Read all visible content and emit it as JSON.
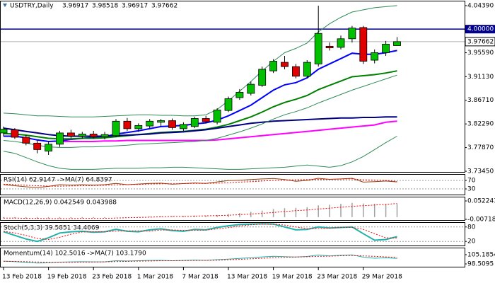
{
  "chart_data": [
    {
      "type": "candlestick",
      "title": "USDTRY,Daily",
      "categories": [
        "13 Feb 2018",
        null,
        null,
        null,
        "19 Feb 2018",
        null,
        null,
        null,
        "23 Feb 2018",
        null,
        null,
        null,
        "1 Mar 2018",
        null,
        null,
        null,
        "7 Mar 2018",
        null,
        null,
        null,
        "13 Mar 2018",
        null,
        null,
        null,
        "19 Mar 2018",
        null,
        null,
        null,
        "23 Mar 2018",
        null,
        null,
        null,
        "29 Mar 2018",
        null,
        null,
        null
      ],
      "open": [
        3.806,
        3.812,
        3.798,
        3.787,
        3.772,
        3.785,
        3.806,
        3.8,
        3.804,
        3.799,
        3.801,
        3.828,
        3.814,
        3.819,
        3.826,
        3.829,
        3.814,
        3.818,
        3.833,
        3.826,
        3.848,
        3.872,
        3.88,
        3.895,
        3.922,
        3.938,
        3.93,
        3.912,
        3.935,
        3.968,
        3.966,
        3.982,
        4.003,
        3.942,
        3.956,
        3.96917
      ],
      "high": [
        3.818,
        3.815,
        3.802,
        3.792,
        3.79,
        3.81,
        3.812,
        3.808,
        3.81,
        3.808,
        3.832,
        3.834,
        3.824,
        3.832,
        3.832,
        3.833,
        3.826,
        3.836,
        3.838,
        3.852,
        3.874,
        3.888,
        3.902,
        3.93,
        3.944,
        3.95,
        3.935,
        3.942,
        4.0439,
        3.975,
        3.988,
        4.006,
        4.006,
        3.962,
        3.978,
        3.98518
      ],
      "low": [
        3.8,
        3.795,
        3.783,
        3.768,
        3.765,
        3.78,
        3.796,
        3.795,
        3.796,
        3.794,
        3.798,
        3.81,
        3.808,
        3.815,
        3.818,
        3.812,
        3.81,
        3.815,
        3.824,
        3.822,
        3.845,
        3.868,
        3.876,
        3.892,
        3.918,
        3.925,
        3.908,
        3.908,
        3.93,
        3.96,
        3.962,
        3.975,
        3.935,
        3.936,
        3.95,
        3.96917
      ],
      "close": [
        3.813,
        3.798,
        3.787,
        3.775,
        3.785,
        3.806,
        3.8,
        3.804,
        3.799,
        3.803,
        3.828,
        3.814,
        3.82,
        3.828,
        3.829,
        3.816,
        3.822,
        3.833,
        3.827,
        3.849,
        3.87,
        3.882,
        3.897,
        3.925,
        3.94,
        3.93,
        3.912,
        3.938,
        3.992,
        3.965,
        3.982,
        4.002,
        3.94,
        3.956,
        3.972,
        3.97662
      ],
      "up_color": "#00c000",
      "down_color": "#e00000",
      "series": [
        {
          "color": "#0000ff",
          "width": 2,
          "values": [
            3.8,
            3.8,
            3.797,
            3.793,
            3.79,
            3.791,
            3.794,
            3.796,
            3.798,
            3.799,
            3.804,
            3.807,
            3.81,
            3.814,
            3.818,
            3.819,
            3.82,
            3.823,
            3.825,
            3.83,
            3.838,
            3.848,
            3.858,
            3.872,
            3.886,
            3.896,
            3.9,
            3.909,
            3.925,
            3.935,
            3.945,
            3.955,
            3.953,
            3.953,
            3.956,
            3.96
          ]
        },
        {
          "color": "#008000",
          "width": 2,
          "values": [
            3.805,
            3.804,
            3.802,
            3.799,
            3.796,
            3.795,
            3.795,
            3.796,
            3.796,
            3.797,
            3.799,
            3.801,
            3.803,
            3.805,
            3.807,
            3.808,
            3.809,
            3.811,
            3.813,
            3.817,
            3.822,
            3.829,
            3.836,
            3.845,
            3.855,
            3.863,
            3.869,
            3.876,
            3.887,
            3.895,
            3.903,
            3.911,
            3.913,
            3.915,
            3.918,
            3.922
          ]
        },
        {
          "color": "#000080",
          "width": 2,
          "values": [
            3.815,
            3.812,
            3.809,
            3.806,
            3.803,
            3.801,
            3.8,
            3.8,
            3.8,
            3.8,
            3.801,
            3.802,
            3.803,
            3.804,
            3.806,
            3.807,
            3.808,
            3.81,
            3.812,
            3.815,
            3.818,
            3.821,
            3.824,
            3.826,
            3.828,
            3.829,
            3.83,
            3.831,
            3.832,
            3.833,
            3.834,
            3.834,
            3.835,
            3.835,
            3.836,
            3.836
          ]
        },
        {
          "color": "#ff00ff",
          "width": 2,
          "values": [
            null,
            null,
            null,
            null,
            null,
            3.79,
            3.79,
            3.79,
            3.79,
            3.791,
            3.791,
            3.792,
            3.792,
            3.792,
            3.792,
            3.792,
            3.792,
            3.792,
            3.792,
            3.793,
            3.795,
            3.797,
            3.799,
            3.801,
            3.803,
            3.805,
            3.807,
            3.809,
            3.811,
            3.813,
            3.815,
            3.817,
            3.819,
            3.821,
            3.826,
            3.828
          ]
        },
        {
          "color": "#2e8b57",
          "width": 1,
          "values": [
            3.843,
            3.842,
            3.84,
            3.838,
            3.838,
            3.837,
            3.836,
            3.836,
            3.836,
            3.837,
            3.838,
            3.839,
            3.84,
            3.84,
            3.839,
            3.839,
            3.838,
            3.838,
            3.84,
            3.85,
            3.866,
            3.884,
            3.902,
            3.922,
            3.94,
            3.956,
            3.964,
            3.974,
            3.995,
            4.01,
            4.022,
            4.032,
            4.036,
            4.04,
            4.042,
            4.044
          ]
        },
        {
          "color": "#2e8b57",
          "width": 1,
          "values": [
            3.792,
            3.79,
            3.787,
            3.783,
            3.78,
            3.779,
            3.779,
            3.78,
            3.78,
            3.781,
            3.782,
            3.783,
            3.785,
            3.786,
            3.787,
            3.788,
            3.789,
            3.79,
            3.792,
            3.796,
            3.802,
            3.808,
            3.815,
            3.823,
            3.832,
            3.84,
            3.846,
            3.853,
            3.862,
            3.87,
            3.878,
            3.886,
            3.893,
            3.9,
            3.907,
            3.914
          ]
        },
        {
          "color": "#2e8b57",
          "width": 1,
          "values": [
            3.772,
            3.768,
            3.76,
            3.752,
            3.745,
            3.74,
            3.738,
            3.738,
            3.738,
            3.739,
            3.74,
            3.74,
            3.74,
            3.741,
            3.741,
            3.742,
            3.742,
            3.741,
            3.74,
            3.739,
            3.738,
            3.738,
            3.739,
            3.74,
            3.741,
            3.742,
            3.744,
            3.746,
            3.744,
            3.742,
            3.745,
            3.752,
            3.762,
            3.775,
            3.788,
            3.8
          ]
        }
      ],
      "hlines": [
        {
          "value": 4,
          "label": "4.00000",
          "color": "#00008b"
        }
      ],
      "ylim": [
        3.7319,
        4.0531
      ],
      "yticks": [
        {
          "value": 4.0439,
          "label": "4.04390"
        },
        {
          "value": 3.9559,
          "label": "3.95590"
        },
        {
          "value": 3.9113,
          "label": "3.91130"
        },
        {
          "value": 3.8671,
          "label": "3.86710"
        },
        {
          "value": 3.8229,
          "label": "3.82290"
        },
        {
          "value": 3.7787,
          "label": "3.77870"
        },
        {
          "value": 3.7345,
          "label": "3.73450"
        }
      ]
    },
    {
      "type": "line",
      "label": "RSI(14) 62.9147 ->MA(7) 64.8397",
      "grid": true,
      "ylim": [
        0,
        100
      ],
      "yticks": [
        70,
        30
      ],
      "series": [
        {
          "color": "#8b4513",
          "values": [
            50,
            45,
            40,
            36,
            42,
            50,
            48,
            50,
            48,
            50,
            56,
            50,
            53,
            56,
            57,
            52,
            55,
            58,
            56,
            63,
            69,
            71,
            74,
            77,
            79,
            74,
            66,
            70,
            80,
            75,
            77,
            80,
            62,
            64,
            67,
            62.9147
          ]
        },
        {
          "color": "#ff0000",
          "dash": true,
          "values": [
            52,
            50,
            47,
            45,
            43,
            43,
            44,
            45,
            46,
            47,
            49,
            50,
            51,
            53,
            54,
            54,
            55,
            56,
            56,
            57,
            59,
            62,
            64,
            67,
            70,
            72,
            73,
            74,
            75,
            75,
            76,
            77,
            73,
            72,
            70,
            64.8397
          ]
        }
      ]
    },
    {
      "type": "line",
      "label": "MACD(12,26,9) 0.042549 0.043988",
      "ylim": [
        -0.01175,
        0.066
      ],
      "yticks": [
        0.052243,
        -0.007183
      ],
      "series": [
        {
          "color": "#a0a0a0",
          "style": "bar",
          "values": [
            -0.004,
            -0.004,
            -0.005,
            -0.006,
            -0.006,
            -0.005,
            -0.004,
            -0.004,
            -0.003,
            -0.003,
            -0.001,
            0,
            0.001,
            0.002,
            0.003,
            0.003,
            0.004,
            0.005,
            0.005,
            0.007,
            0.01,
            0.013,
            0.017,
            0.021,
            0.026,
            0.029,
            0.03,
            0.032,
            0.038,
            0.04,
            0.043,
            0.046,
            0.044,
            0.043,
            0.043,
            0.042549
          ]
        },
        {
          "color": "#ff0000",
          "dash": true,
          "values": [
            -0.003,
            -0.003,
            -0.004,
            -0.004,
            -0.005,
            -0.005,
            -0.005,
            -0.004,
            -0.004,
            -0.004,
            -0.003,
            -0.002,
            -0.001,
            0,
            0.001,
            0.002,
            0.002,
            0.003,
            0.004,
            0.005,
            0.006,
            0.008,
            0.01,
            0.012,
            0.015,
            0.018,
            0.021,
            0.023,
            0.026,
            0.029,
            0.032,
            0.035,
            0.037,
            0.039,
            0.041,
            0.043988
          ]
        }
      ]
    },
    {
      "type": "line",
      "label": "Stoch(5,3,3) 39.5851 34.4069",
      "grid": true,
      "ylim": [
        0,
        100
      ],
      "yticks": [
        80,
        20
      ],
      "series": [
        {
          "color": "#20b2aa",
          "width": 2,
          "values": [
            60,
            45,
            30,
            20,
            35,
            55,
            60,
            62,
            58,
            60,
            70,
            62,
            60,
            68,
            72,
            65,
            62,
            70,
            68,
            78,
            85,
            90,
            92,
            93,
            92,
            80,
            68,
            70,
            80,
            76,
            78,
            80,
            52,
            25,
            28,
            39.5851
          ]
        },
        {
          "color": "#ff0000",
          "dash": true,
          "values": [
            62,
            55,
            45,
            32,
            28,
            37,
            50,
            59,
            60,
            60,
            63,
            64,
            64,
            63,
            67,
            68,
            66,
            66,
            67,
            72,
            77,
            84,
            89,
            92,
            92,
            88,
            80,
            73,
            73,
            75,
            78,
            78,
            70,
            52,
            35,
            34.4069
          ]
        }
      ]
    },
    {
      "type": "line",
      "label": "Momentum(14) 102.5016 ->MA(7) 103.1790",
      "ylim": [
        95.94,
        110.32
      ],
      "yticks": [
        105.1854,
        98.5095
      ],
      "series": [
        {
          "color": "#20b2aa",
          "values": [
            100.5,
            100.2,
            99.6,
            99.1,
            99.3,
            99.8,
            100,
            100.1,
            100,
            100,
            100.8,
            100.6,
            100.8,
            101,
            101.1,
            100.8,
            101,
            101.3,
            101.1,
            101.6,
            102,
            102.5,
            103,
            103.6,
            104,
            103.8,
            103.5,
            103.9,
            105,
            104.3,
            104.8,
            105.1,
            103.4,
            102.6,
            102.9,
            102.5016
          ]
        },
        {
          "color": "#ff0000",
          "dash": true,
          "values": [
            100.4,
            100.3,
            100.1,
            99.9,
            99.7,
            99.7,
            99.7,
            99.8,
            99.9,
            100,
            100.2,
            100.3,
            100.5,
            100.6,
            100.8,
            100.8,
            100.9,
            101,
            101.1,
            101.2,
            101.5,
            101.8,
            102.2,
            102.6,
            103,
            103.3,
            103.5,
            103.7,
            104,
            104.1,
            104.4,
            104.6,
            104.3,
            104,
            103.6,
            103.179
          ]
        }
      ]
    }
  ]
}
